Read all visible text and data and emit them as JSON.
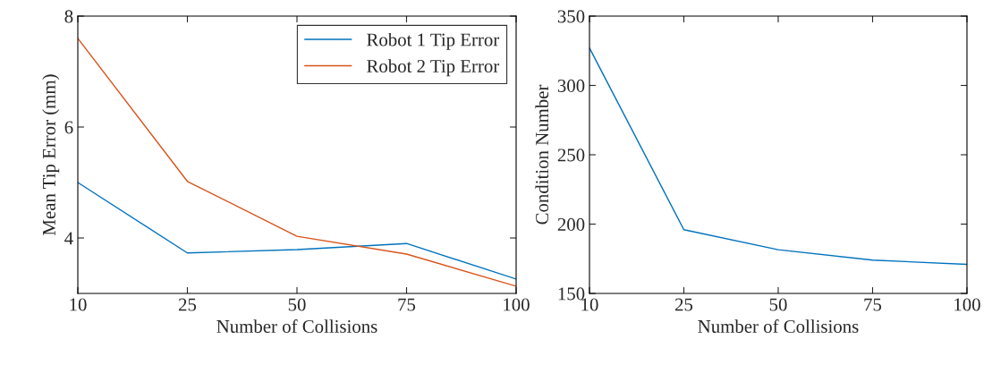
{
  "chart_data": [
    {
      "type": "line",
      "categories": [
        "10",
        "25",
        "50",
        "75",
        "100"
      ],
      "xlabel": "Number of Collisions",
      "ylabel": "Mean Tip Error (mm)",
      "ylim": [
        3,
        8
      ],
      "yticks": [
        4,
        6,
        8
      ],
      "legend": "top right",
      "grid": false,
      "series": [
        {
          "name": "Robot 1 Tip Error",
          "color": "#0072bd",
          "values": [
            5.0,
            3.73,
            3.79,
            3.9,
            3.26
          ]
        },
        {
          "name": "Robot 2 Tip Error",
          "color": "#d95319",
          "values": [
            7.6,
            5.02,
            4.03,
            3.71,
            3.13
          ]
        }
      ]
    },
    {
      "type": "line",
      "categories": [
        "10",
        "25",
        "50",
        "75",
        "100"
      ],
      "xlabel": "Number of Collisions",
      "ylabel": "Condition Number",
      "ylim": [
        150,
        350
      ],
      "yticks": [
        150,
        200,
        250,
        300,
        350
      ],
      "grid": false,
      "series": [
        {
          "color": "#0072bd",
          "values": [
            327,
            196,
            181.5,
            174,
            171
          ]
        }
      ]
    }
  ]
}
